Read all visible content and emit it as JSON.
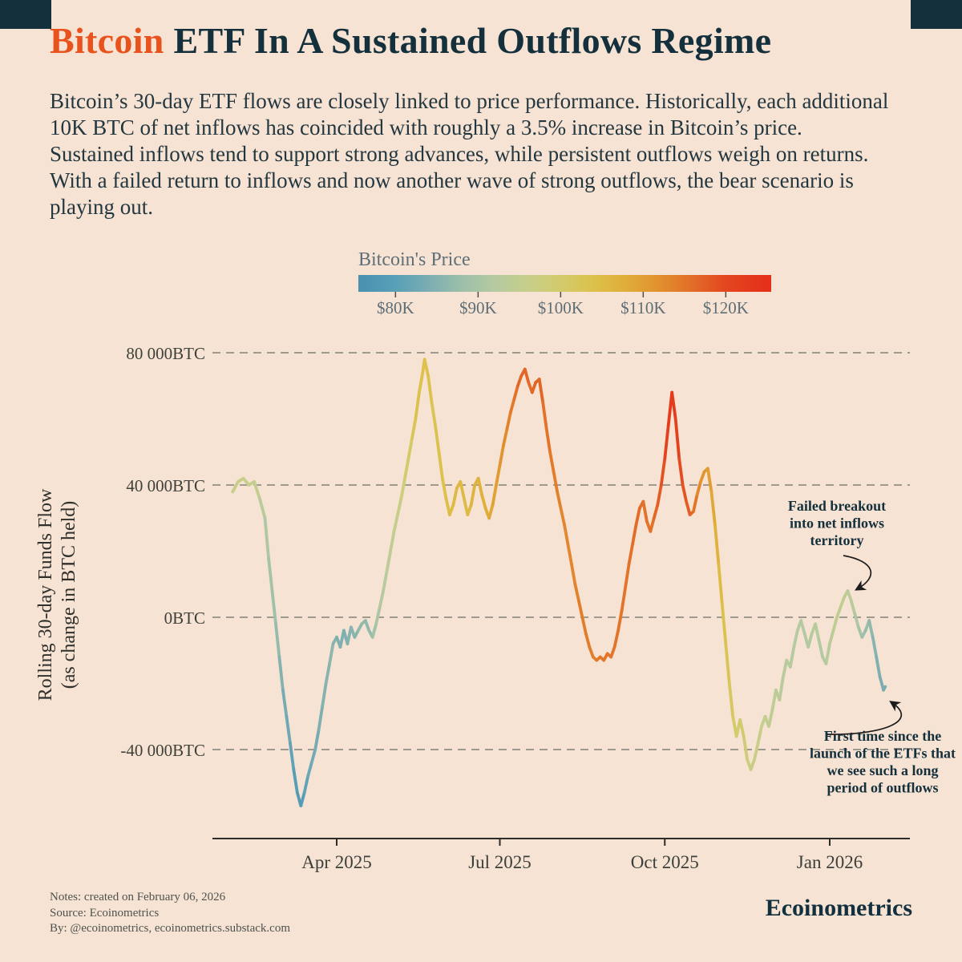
{
  "page": {
    "background": "#f7e3d3",
    "accent_navy": "#15303d",
    "accent_orange": "#e8521c"
  },
  "header": {
    "title_highlight": "Bitcoin",
    "title_rest": " ETF In A Sustained Outflows Regime",
    "description": "Bitcoin’s 30-day ETF flows are closely linked to price performance. Historically, each additional 10K BTC of net inflows has coincided with roughly a 3.5% increase in Bitcoin’s price. Sustained inflows tend to support strong advances, while persistent outflows weigh on returns. With a failed return to inflows and now another wave of strong outflows, the bear scenario is playing out."
  },
  "chart_data": {
    "type": "line",
    "title": "Bitcoin ETF In A Sustained Outflows Regime",
    "ylabel_line1": "Rolling 30-day Funds Flow",
    "ylabel_line2": "(as change in BTC held)",
    "y_units": "thousand BTC",
    "x_units": "days since 2025-02-01",
    "price_units": "thousand USD (encoded as line color)",
    "y_domain": [
      -66,
      82
    ],
    "x_domain_days": [
      -10,
      379
    ],
    "grid": "dashed-horizontal",
    "y_ticks": [
      {
        "value": 80,
        "label": "80 000BTC"
      },
      {
        "value": 40,
        "label": "40 000BTC"
      },
      {
        "value": 0,
        "label": "0BTC"
      },
      {
        "value": -40,
        "label": "-40 000BTC"
      }
    ],
    "x_ticks": [
      {
        "day": 59,
        "label": "Apr 2025"
      },
      {
        "day": 150,
        "label": "Jul 2025"
      },
      {
        "day": 242,
        "label": "Oct 2025"
      },
      {
        "day": 334,
        "label": "Jan 2026"
      }
    ],
    "colorbar": {
      "title": "Bitcoin's Price",
      "tick_labels": [
        "$80K",
        "$90K",
        "$100K",
        "$110K",
        "$120K"
      ],
      "tick_values": [
        80,
        90,
        100,
        110,
        120
      ],
      "domain": [
        75.5,
        125.5
      ],
      "stops": [
        [
          76,
          "#4a92b1"
        ],
        [
          80,
          "#58a0b7"
        ],
        [
          84,
          "#7badb2"
        ],
        [
          88,
          "#9cbfaa"
        ],
        [
          92,
          "#b5caa0"
        ],
        [
          96,
          "#c6ce8a"
        ],
        [
          100,
          "#d3cb6c"
        ],
        [
          104,
          "#dcc14b"
        ],
        [
          108,
          "#e0ac38"
        ],
        [
          112,
          "#e1902e"
        ],
        [
          116,
          "#e26c28"
        ],
        [
          120,
          "#e34620"
        ],
        [
          125,
          "#e5301a"
        ]
      ]
    },
    "points": [
      [
        1,
        38,
        96
      ],
      [
        4,
        41,
        96
      ],
      [
        7,
        42,
        97
      ],
      [
        10,
        40,
        95
      ],
      [
        13,
        41,
        96
      ],
      [
        16,
        36,
        94
      ],
      [
        19,
        30,
        92
      ],
      [
        21,
        18,
        90
      ],
      [
        23,
        8,
        89
      ],
      [
        25,
        -2,
        88
      ],
      [
        27,
        -12,
        86
      ],
      [
        29,
        -22,
        84
      ],
      [
        31,
        -30,
        83
      ],
      [
        33,
        -38,
        82
      ],
      [
        35,
        -46,
        80
      ],
      [
        37,
        -53,
        79
      ],
      [
        39,
        -57,
        78
      ],
      [
        41,
        -53,
        80
      ],
      [
        43,
        -48,
        82
      ],
      [
        45,
        -44,
        83
      ],
      [
        47,
        -40,
        83
      ],
      [
        49,
        -34,
        84
      ],
      [
        51,
        -27,
        85
      ],
      [
        53,
        -20,
        85
      ],
      [
        55,
        -14,
        86
      ],
      [
        57,
        -8,
        86
      ],
      [
        59,
        -6,
        85
      ],
      [
        61,
        -9,
        84
      ],
      [
        63,
        -4,
        85
      ],
      [
        65,
        -8,
        84
      ],
      [
        67,
        -3,
        86
      ],
      [
        69,
        -6,
        85
      ],
      [
        71,
        -4,
        86
      ],
      [
        73,
        -2,
        87
      ],
      [
        75,
        -1,
        87
      ],
      [
        77,
        -4,
        86
      ],
      [
        79,
        -6,
        88
      ],
      [
        81,
        -2,
        90
      ],
      [
        83,
        3,
        91
      ],
      [
        85,
        8,
        92
      ],
      [
        87,
        14,
        93
      ],
      [
        89,
        20,
        94
      ],
      [
        91,
        26,
        95
      ],
      [
        93,
        31,
        96
      ],
      [
        95,
        36,
        97
      ],
      [
        97,
        42,
        99
      ],
      [
        99,
        48,
        100
      ],
      [
        101,
        54,
        102
      ],
      [
        103,
        60,
        103
      ],
      [
        105,
        68,
        104
      ],
      [
        107,
        74,
        104
      ],
      [
        108,
        78,
        104
      ],
      [
        110,
        73,
        104
      ],
      [
        112,
        65,
        103
      ],
      [
        114,
        58,
        103
      ],
      [
        116,
        50,
        104
      ],
      [
        118,
        42,
        104
      ],
      [
        120,
        36,
        104
      ],
      [
        122,
        31,
        105
      ],
      [
        124,
        34,
        105
      ],
      [
        126,
        39,
        106
      ],
      [
        128,
        41,
        106
      ],
      [
        130,
        36,
        105
      ],
      [
        132,
        31,
        105
      ],
      [
        134,
        34,
        106
      ],
      [
        136,
        40,
        107
      ],
      [
        138,
        42,
        107
      ],
      [
        140,
        37,
        107
      ],
      [
        142,
        33,
        108
      ],
      [
        144,
        30,
        108
      ],
      [
        146,
        34,
        109
      ],
      [
        148,
        40,
        110
      ],
      [
        150,
        46,
        111
      ],
      [
        152,
        52,
        112
      ],
      [
        154,
        57,
        113
      ],
      [
        156,
        62,
        114
      ],
      [
        158,
        66,
        115
      ],
      [
        160,
        70,
        116
      ],
      [
        162,
        73,
        117
      ],
      [
        164,
        75,
        117
      ],
      [
        166,
        71,
        116
      ],
      [
        168,
        68,
        116
      ],
      [
        170,
        71,
        117
      ],
      [
        172,
        72,
        117
      ],
      [
        174,
        65,
        116
      ],
      [
        176,
        57,
        115
      ],
      [
        178,
        50,
        115
      ],
      [
        180,
        44,
        114
      ],
      [
        182,
        38,
        114
      ],
      [
        184,
        33,
        113
      ],
      [
        186,
        28,
        113
      ],
      [
        188,
        22,
        113
      ],
      [
        190,
        16,
        113
      ],
      [
        192,
        10,
        113
      ],
      [
        194,
        5,
        114
      ],
      [
        196,
        0,
        114
      ],
      [
        198,
        -5,
        114
      ],
      [
        200,
        -9,
        114
      ],
      [
        202,
        -12,
        114
      ],
      [
        204,
        -13,
        114
      ],
      [
        206,
        -12,
        115
      ],
      [
        208,
        -13,
        115
      ],
      [
        210,
        -11,
        115
      ],
      [
        212,
        -12,
        115
      ],
      [
        214,
        -9,
        115
      ],
      [
        216,
        -4,
        115
      ],
      [
        218,
        2,
        115
      ],
      [
        220,
        9,
        115
      ],
      [
        222,
        16,
        115
      ],
      [
        224,
        22,
        116
      ],
      [
        226,
        28,
        116
      ],
      [
        228,
        33,
        116
      ],
      [
        230,
        35,
        116
      ],
      [
        232,
        29,
        115
      ],
      [
        234,
        26,
        115
      ],
      [
        236,
        30,
        116
      ],
      [
        238,
        34,
        117
      ],
      [
        240,
        40,
        118
      ],
      [
        242,
        48,
        120
      ],
      [
        244,
        58,
        122
      ],
      [
        246,
        68,
        123
      ],
      [
        248,
        60,
        122
      ],
      [
        250,
        48,
        120
      ],
      [
        252,
        40,
        119
      ],
      [
        254,
        35,
        118
      ],
      [
        256,
        31,
        117
      ],
      [
        258,
        32,
        116
      ],
      [
        260,
        37,
        114
      ],
      [
        262,
        41,
        112
      ],
      [
        264,
        44,
        111
      ],
      [
        266,
        45,
        111
      ],
      [
        268,
        38,
        109
      ],
      [
        270,
        28,
        108
      ],
      [
        272,
        16,
        106
      ],
      [
        274,
        4,
        104
      ],
      [
        276,
        -8,
        103
      ],
      [
        278,
        -20,
        102
      ],
      [
        280,
        -30,
        101
      ],
      [
        282,
        -36,
        100
      ],
      [
        284,
        -31,
        100
      ],
      [
        286,
        -36,
        99
      ],
      [
        288,
        -43,
        98
      ],
      [
        290,
        -46,
        97
      ],
      [
        292,
        -43,
        97
      ],
      [
        294,
        -38,
        96
      ],
      [
        296,
        -33,
        96
      ],
      [
        298,
        -30,
        95
      ],
      [
        300,
        -33,
        95
      ],
      [
        302,
        -28,
        94
      ],
      [
        304,
        -22,
        94
      ],
      [
        306,
        -25,
        93
      ],
      [
        308,
        -18,
        93
      ],
      [
        310,
        -13,
        93
      ],
      [
        312,
        -15,
        92
      ],
      [
        314,
        -9,
        92
      ],
      [
        316,
        -4,
        92
      ],
      [
        318,
        -1,
        92
      ],
      [
        320,
        -5,
        92
      ],
      [
        322,
        -9,
        91
      ],
      [
        324,
        -5,
        92
      ],
      [
        326,
        -2,
        93
      ],
      [
        328,
        -7,
        92
      ],
      [
        330,
        -12,
        91
      ],
      [
        332,
        -14,
        92
      ],
      [
        334,
        -8,
        93
      ],
      [
        336,
        -4,
        94
      ],
      [
        338,
        0,
        94
      ],
      [
        340,
        3,
        95
      ],
      [
        342,
        6,
        95
      ],
      [
        344,
        8,
        94
      ],
      [
        346,
        5,
        93
      ],
      [
        348,
        1,
        92
      ],
      [
        350,
        -3,
        90
      ],
      [
        352,
        -6,
        89
      ],
      [
        354,
        -4,
        88
      ],
      [
        356,
        -1,
        87
      ],
      [
        358,
        -6,
        86
      ],
      [
        360,
        -12,
        85
      ],
      [
        362,
        -18,
        84
      ],
      [
        364,
        -22,
        84
      ],
      [
        365,
        -21,
        84
      ]
    ],
    "annotations": [
      {
        "lines": [
          "Failed breakout",
          "into net inflows",
          "territory"
        ]
      },
      {
        "lines": [
          "First time since the",
          "launch of the ETFs that",
          "we see such a long",
          "period of outflows"
        ]
      }
    ]
  },
  "footer": {
    "notes": "Notes: created on February 06, 2026",
    "source": "Source: Ecoinometrics",
    "by": "By: @ecoinometrics, ecoinometrics.substack.com",
    "brand": "Ecoinometrics"
  }
}
